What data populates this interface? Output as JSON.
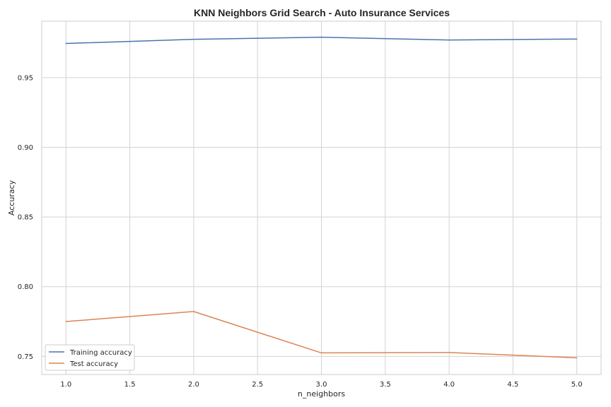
{
  "chart_data": {
    "type": "line",
    "title": "KNN Neighbors Grid Search - Auto Insurance Services",
    "xlabel": "n_neighbors",
    "ylabel": "Accuracy",
    "x": [
      1,
      2,
      3,
      4,
      5
    ],
    "series": [
      {
        "name": "Training accuracy",
        "color": "#4c72b0",
        "values": [
          0.9745,
          0.9775,
          0.979,
          0.977,
          0.9777
        ]
      },
      {
        "name": "Test accuracy",
        "color": "#dd8452",
        "values": [
          0.775,
          0.7822,
          0.7525,
          0.7528,
          0.749
        ]
      }
    ],
    "xlim": [
      0.81,
      5.19
    ],
    "ylim": [
      0.737,
      0.9905
    ],
    "xticks": [
      1.0,
      1.5,
      2.0,
      2.5,
      3.0,
      3.5,
      4.0,
      4.5,
      5.0
    ],
    "xtick_labels": [
      "1.0",
      "1.5",
      "2.0",
      "2.5",
      "3.0",
      "3.5",
      "4.0",
      "4.5",
      "5.0"
    ],
    "yticks": [
      0.75,
      0.8,
      0.85,
      0.9,
      0.95
    ],
    "ytick_labels": [
      "0.75",
      "0.80",
      "0.85",
      "0.90",
      "0.95"
    ],
    "grid": true,
    "legend_position": "lower-left"
  }
}
